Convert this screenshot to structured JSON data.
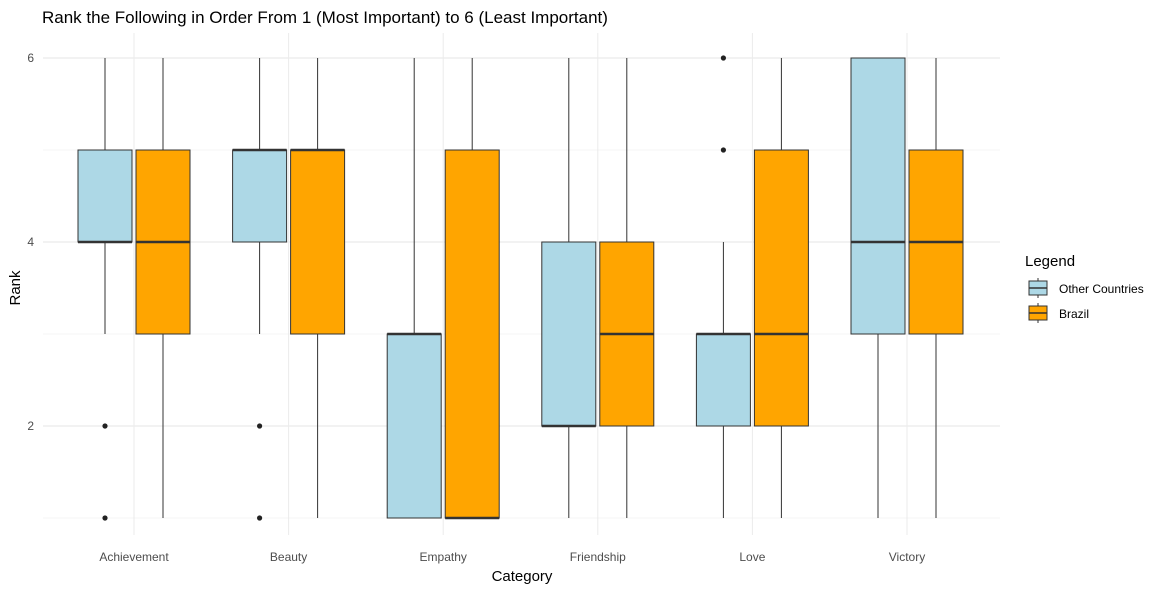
{
  "chart_data": {
    "type": "boxplot",
    "title": "Rank the Following in Order From 1 (Most Important) to 6 (Least Important)",
    "xlabel": "Category",
    "ylabel": "Rank",
    "categories": [
      "Achievement",
      "Beauty",
      "Empathy",
      "Friendship",
      "Love",
      "Victory"
    ],
    "yticks": [
      2,
      4,
      6
    ],
    "ylim": [
      0.75,
      6.3
    ],
    "grid": true,
    "legend": {
      "title": "Legend",
      "placement": "right"
    },
    "series": [
      {
        "name": "Other Countries",
        "color": "#add8e6",
        "boxes": [
          {
            "whisker_low": 3,
            "q1": 4,
            "median": 4,
            "q3": 5,
            "whisker_high": 6,
            "outliers": [
              2,
              1
            ]
          },
          {
            "whisker_low": 3,
            "q1": 4,
            "median": 5,
            "q3": 5,
            "whisker_high": 6,
            "outliers": [
              2,
              1
            ]
          },
          {
            "whisker_low": 1,
            "q1": 1,
            "median": 3,
            "q3": 3,
            "whisker_high": 6,
            "outliers": []
          },
          {
            "whisker_low": 1,
            "q1": 2,
            "median": 2,
            "q3": 4,
            "whisker_high": 6,
            "outliers": []
          },
          {
            "whisker_low": 1,
            "q1": 2,
            "median": 3,
            "q3": 3,
            "whisker_high": 4,
            "outliers": [
              6,
              5
            ]
          },
          {
            "whisker_low": 1,
            "q1": 3,
            "median": 4,
            "q3": 6,
            "whisker_high": 6,
            "outliers": []
          }
        ]
      },
      {
        "name": "Brazil",
        "color": "#ffa500",
        "boxes": [
          {
            "whisker_low": 1,
            "q1": 3,
            "median": 4,
            "q3": 5,
            "whisker_high": 6,
            "outliers": []
          },
          {
            "whisker_low": 1,
            "q1": 3,
            "median": 5,
            "q3": 5,
            "whisker_high": 6,
            "outliers": []
          },
          {
            "whisker_low": 1,
            "q1": 1,
            "median": 1,
            "q3": 5,
            "whisker_high": 6,
            "outliers": []
          },
          {
            "whisker_low": 1,
            "q1": 2,
            "median": 3,
            "q3": 4,
            "whisker_high": 6,
            "outliers": []
          },
          {
            "whisker_low": 1,
            "q1": 2,
            "median": 3,
            "q3": 5,
            "whisker_high": 6,
            "outliers": []
          },
          {
            "whisker_low": 1,
            "q1": 3,
            "median": 4,
            "q3": 5,
            "whisker_high": 6,
            "outliers": []
          }
        ]
      }
    ]
  }
}
